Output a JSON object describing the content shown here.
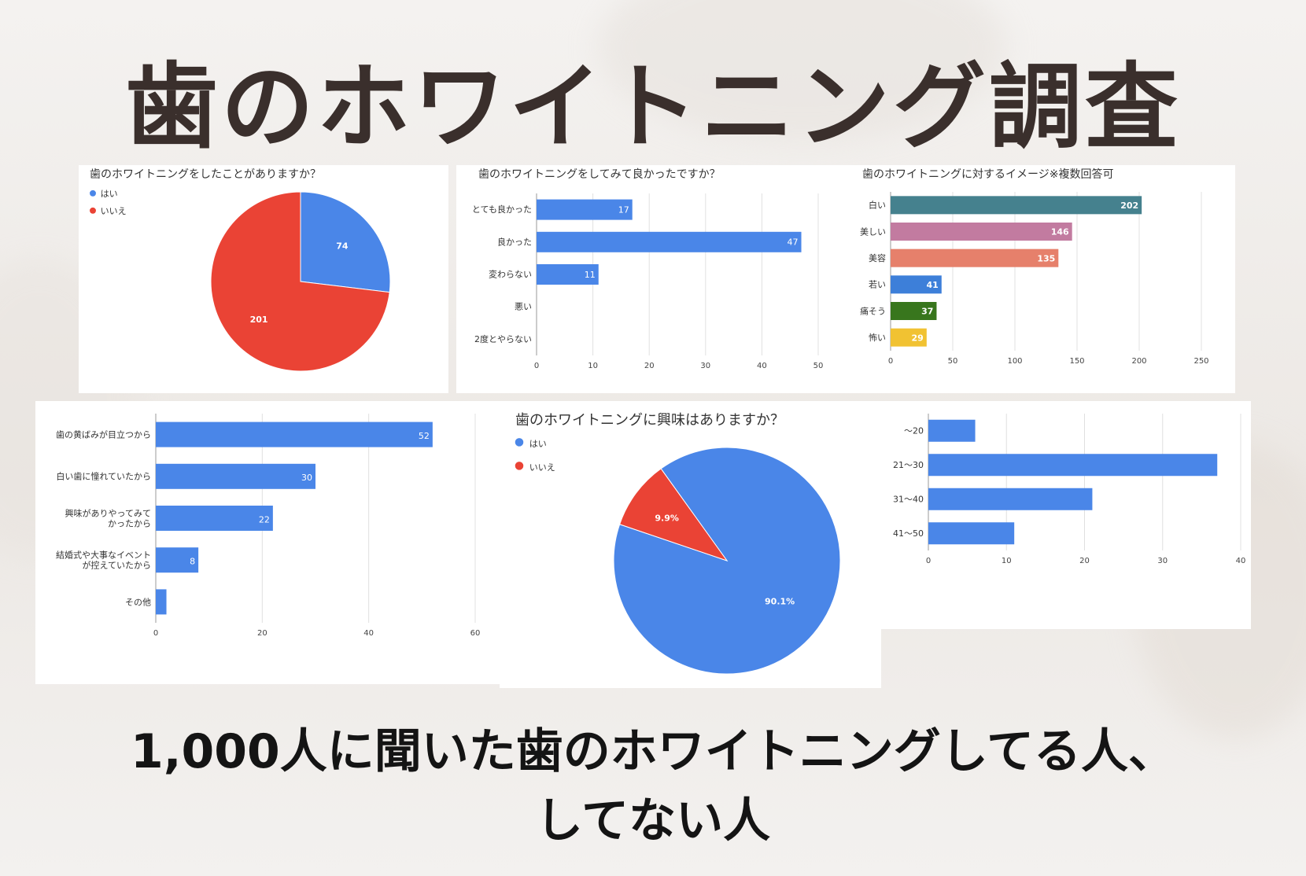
{
  "page": {
    "title": "歯のホワイトニング調査",
    "subtitle_line1": "1,000人に聞いた歯のホワイトニングしてる人、",
    "subtitle_line2": "してない人"
  },
  "colors": {
    "blue": "#4a86e8",
    "red": "#ea4335",
    "title_text": "#3a2f2c"
  },
  "chart_data": [
    {
      "id": "experience",
      "type": "pie",
      "title": "歯のホワイトニングをしたことがありますか？",
      "legend": [
        "はい",
        "いいえ"
      ],
      "values": [
        74,
        201
      ],
      "labels": [
        "74",
        "201"
      ],
      "colors": [
        "#4a86e8",
        "#ea4335"
      ],
      "legend_position": "top-left"
    },
    {
      "id": "satisfaction",
      "type": "bar",
      "orientation": "horizontal",
      "title": "歯のホワイトニングをしてみて良かったですか？",
      "categories": [
        "とても良かった",
        "良かった",
        "変わらない",
        "悪い",
        "2度とやらない"
      ],
      "values": [
        17,
        47,
        11,
        0,
        0
      ],
      "xlim": [
        0,
        50
      ],
      "xticks": [
        "0",
        "10",
        "20",
        "30",
        "40",
        "50"
      ],
      "color": "#4a86e8",
      "grid": true
    },
    {
      "id": "image",
      "type": "bar",
      "orientation": "horizontal",
      "title": "歯のホワイトニングに対するイメージ※複数回答可",
      "categories": [
        "白い",
        "美しい",
        "美容",
        "若い",
        "痛そう",
        "怖い"
      ],
      "values": [
        202,
        146,
        135,
        41,
        37,
        29
      ],
      "colors": [
        "#45818e",
        "#c27ba0",
        "#e6806b",
        "#3d7fd9",
        "#38761d",
        "#f1c232"
      ],
      "xlim": [
        0,
        250
      ],
      "xticks": [
        "0",
        "50",
        "100",
        "150",
        "200",
        "250"
      ],
      "grid": true
    },
    {
      "id": "reason",
      "type": "bar",
      "orientation": "horizontal",
      "title": "",
      "categories": [
        [
          "歯の黄ばみが目立つから"
        ],
        [
          "白い歯に憧れていたから"
        ],
        [
          "興味がありやってみて",
          "かったから"
        ],
        [
          "結婚式や大事なイベント",
          "が控えていたから"
        ],
        [
          "その他"
        ]
      ],
      "values": [
        52,
        30,
        22,
        8,
        2
      ],
      "xlim": [
        0,
        60
      ],
      "xticks": [
        "0",
        "20",
        "40",
        "60"
      ],
      "color": "#4a86e8",
      "grid": true
    },
    {
      "id": "interest",
      "type": "pie",
      "title": "歯のホワイトニングに興味はありますか？",
      "legend": [
        "はい",
        "いいえ"
      ],
      "values": [
        90.1,
        9.9
      ],
      "labels": [
        "90.1%",
        "9.9%"
      ],
      "colors": [
        "#4a86e8",
        "#ea4335"
      ],
      "legend_position": "top-left"
    },
    {
      "id": "age",
      "type": "bar",
      "orientation": "horizontal",
      "title": "",
      "categories": [
        "～20",
        "21～30",
        "31～40",
        "41～50"
      ],
      "values": [
        6,
        37,
        21,
        11
      ],
      "xlim": [
        0,
        40
      ],
      "xticks": [
        "0",
        "10",
        "20",
        "30",
        "40"
      ],
      "color": "#4a86e8",
      "grid": true
    }
  ]
}
